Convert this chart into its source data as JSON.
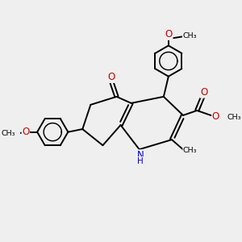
{
  "bg_color": "#efefef",
  "bond_color": "#000000",
  "N_color": "#0000cc",
  "O_color": "#cc0000",
  "lw": 1.4,
  "figsize": [
    3.0,
    3.0
  ],
  "dpi": 100,
  "xlim": [
    0,
    10
  ],
  "ylim": [
    0,
    10
  ]
}
